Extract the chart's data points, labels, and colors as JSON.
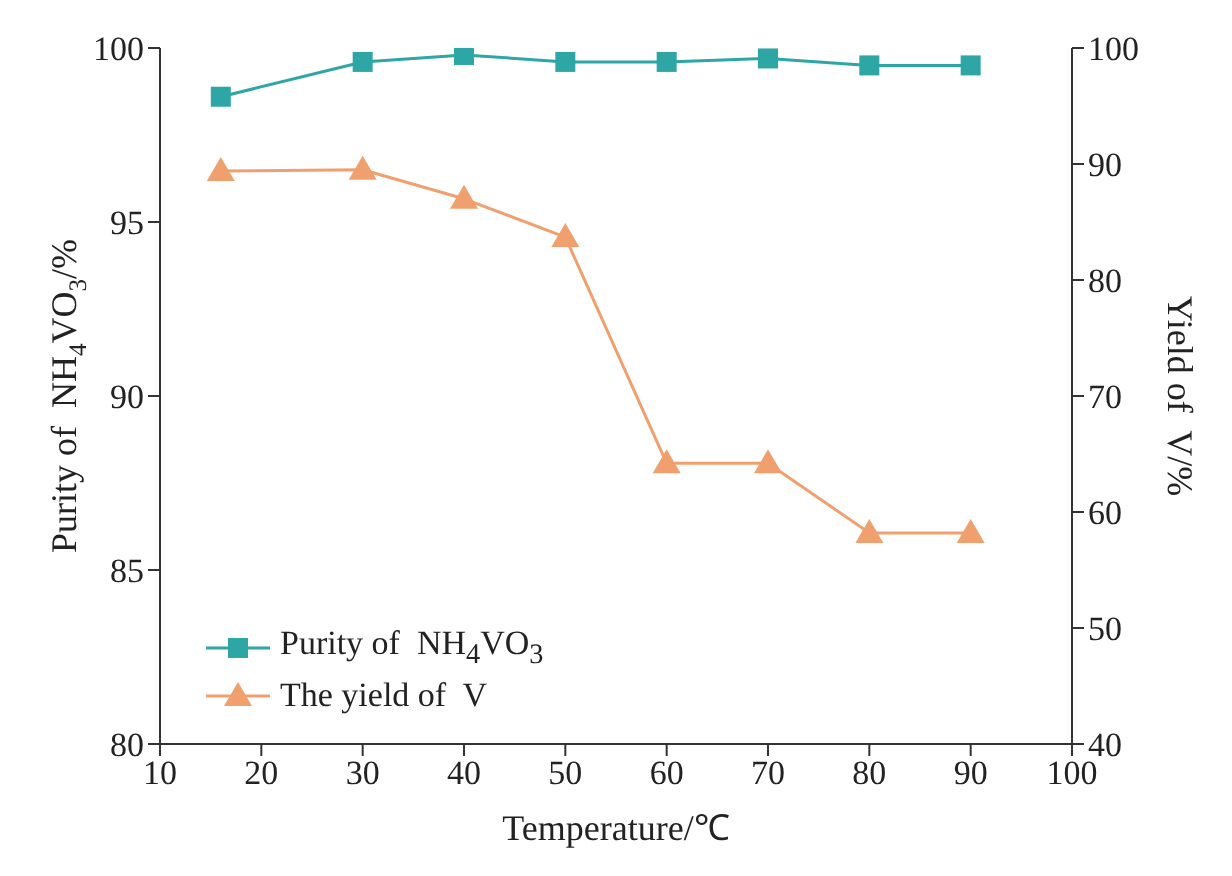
{
  "chart_data": {
    "type": "line",
    "xlabel": "Temperature/℃",
    "ylabel": "Purity of  NH$_{4}$VO$_{3}$/%",
    "y2label": "Yield of  V/%",
    "x": [
      16,
      30,
      40,
      50,
      60,
      70,
      80,
      90
    ],
    "series": [
      {
        "name": "Purity of  NH$_{4}$VO$_{3}$",
        "color": "#2ea6a6",
        "marker": "square",
        "values": [
          98.6,
          99.6,
          99.8,
          99.6,
          99.6,
          99.7,
          99.5,
          99.5
        ]
      },
      {
        "name": "The yield of  V",
        "color": "#f0a06e",
        "marker": "triangle",
        "axis": "y2",
        "values": [
          89.4,
          89.5,
          87.0,
          83.7,
          64.2,
          64.2,
          58.2,
          58.2
        ]
      }
    ],
    "xlim": [
      10,
      100
    ],
    "xticks": [
      10,
      20,
      30,
      40,
      50,
      60,
      70,
      80,
      90,
      100
    ],
    "ylim": [
      80,
      100
    ],
    "yticks": [
      80,
      85,
      90,
      95,
      100
    ],
    "y2lim": [
      40,
      100
    ],
    "y2ticks": [
      40,
      50,
      60,
      70,
      80,
      90,
      100
    ],
    "legend": "bottom left",
    "grid": false
  }
}
